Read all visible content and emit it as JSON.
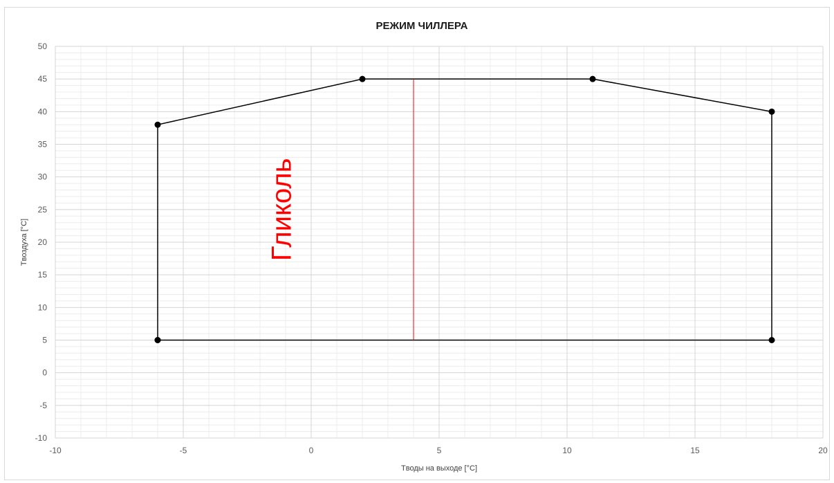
{
  "chart_data": {
    "type": "scatter",
    "title": "РЕЖИМ ЧИЛЛЕРА",
    "xlabel": "Tводы на выходе [°C]",
    "ylabel": "Tвоздуха [°C]",
    "xlim": [
      -10,
      20
    ],
    "ylim": [
      -10,
      50
    ],
    "x_ticks": [
      -10,
      -5,
      0,
      5,
      10,
      15,
      20
    ],
    "y_ticks": [
      -10,
      -5,
      0,
      5,
      10,
      15,
      20,
      25,
      30,
      35,
      40,
      45,
      50
    ],
    "x_minor_step": 1,
    "y_minor_step": 1,
    "grid": true,
    "series": [
      {
        "color": "#000000",
        "mode": "lines+markers",
        "points": [
          {
            "x": -6,
            "y": 5
          },
          {
            "x": -6,
            "y": 38
          },
          {
            "x": 2,
            "y": 45
          },
          {
            "x": 11,
            "y": 45
          },
          {
            "x": 18,
            "y": 40
          },
          {
            "x": 18,
            "y": 5
          },
          {
            "x": -6,
            "y": 5
          }
        ]
      },
      {
        "color": "#ff0000",
        "mode": "lines",
        "points": [
          {
            "x": 4,
            "y": 5
          },
          {
            "x": 4,
            "y": 45
          }
        ]
      }
    ],
    "annotations": [
      {
        "text": "Гликоль",
        "x": -0.8,
        "y": 25,
        "rotation": -90,
        "color": "#ff0000"
      }
    ]
  }
}
